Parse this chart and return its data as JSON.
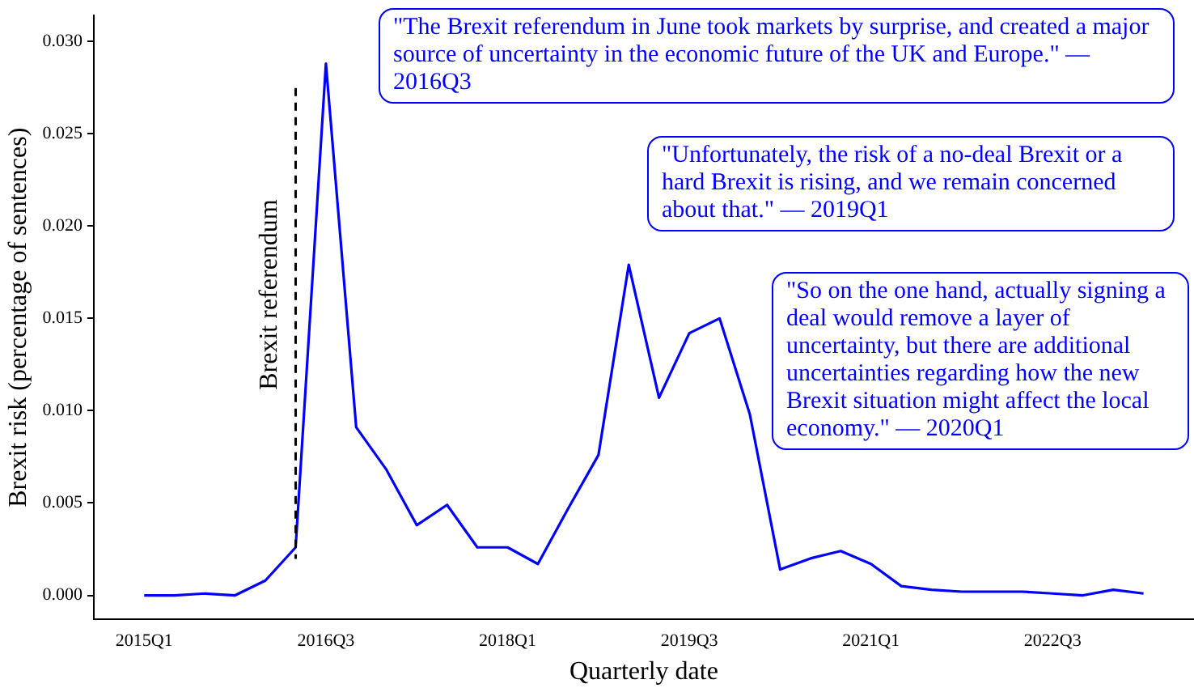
{
  "chart_data": {
    "type": "line",
    "xlabel": "Quarterly date",
    "ylabel": "Brexit risk (percentage of sentences)",
    "x": [
      "2015-01",
      "2015-04",
      "2015-07",
      "2015-10",
      "2016-01",
      "2016-04",
      "2016-07",
      "2016-10",
      "2017-01",
      "2017-04",
      "2017-07",
      "2017-10",
      "2018-01",
      "2018-04",
      "2018-07",
      "2018-10",
      "2019-01",
      "2019-04",
      "2019-07",
      "2019-10",
      "2020-01",
      "2020-04",
      "2020-07",
      "2020-10",
      "2021-01",
      "2021-04",
      "2021-07",
      "2021-10",
      "2022-01",
      "2022-04",
      "2022-07",
      "2022-10",
      "2023-01",
      "2023-04"
    ],
    "series": [
      {
        "color": "#0000ff",
        "values": [
          0,
          0,
          0.0001,
          0,
          0.0008,
          0.0026,
          0.0288,
          0.0091,
          0.0068,
          0.0038,
          0.0049,
          0.0026,
          0.0026,
          0.0017,
          0.0047,
          0.0076,
          0.0179,
          0.0107,
          0.0142,
          0.015,
          0.0098,
          0.0014,
          0.002,
          0.0024,
          0.0017,
          0.0005,
          0.0003,
          0.0002,
          0.0002,
          0.0002,
          0.0001,
          0,
          0.0003,
          0.0001
        ]
      }
    ],
    "xlim": [
      "2014-08",
      "2023-09"
    ],
    "xticks": [
      {
        "value": "2015-01",
        "label": "2015Q1"
      },
      {
        "value": "2016-07",
        "label": "2016Q3"
      },
      {
        "value": "2018-01",
        "label": "2018Q1"
      },
      {
        "value": "2019-07",
        "label": "2019Q3"
      },
      {
        "value": "2021-01",
        "label": "2021Q1"
      },
      {
        "value": "2022-07",
        "label": "2022Q3"
      }
    ],
    "ylim": [
      -0.0013,
      0.0314
    ],
    "yticks": [
      {
        "value": 0,
        "label": "0.000"
      },
      {
        "value": 0.005,
        "label": "0.005"
      },
      {
        "value": 0.01,
        "label": "0.010"
      },
      {
        "value": 0.015,
        "label": "0.015"
      },
      {
        "value": 0.02,
        "label": "0.020"
      },
      {
        "value": 0.025,
        "label": "0.025"
      },
      {
        "value": 0.03,
        "label": "0.030"
      }
    ],
    "ref_lines": [
      {
        "axis": "x",
        "value": "2016-04",
        "label": "Brexit referendum",
        "color": "#000000",
        "line_style": "dashed"
      }
    ],
    "annotations": [
      "\"The Brexit referendum in June took markets by surprise, and created a major source of uncertainty in the economic future of the UK and Europe.\" — 2016Q3",
      "\"Unfortunately, the risk of a no-deal Brexit or a hard Brexit is rising, and we remain concerned about that.\" — 2019Q1",
      "\"So on the one hand, actually signing a deal would remove a layer of uncertainty, but there are additional uncertainties regarding how the new Brexit situation might affect the local economy.\" — 2020Q1"
    ],
    "grid": false,
    "legend": false
  }
}
